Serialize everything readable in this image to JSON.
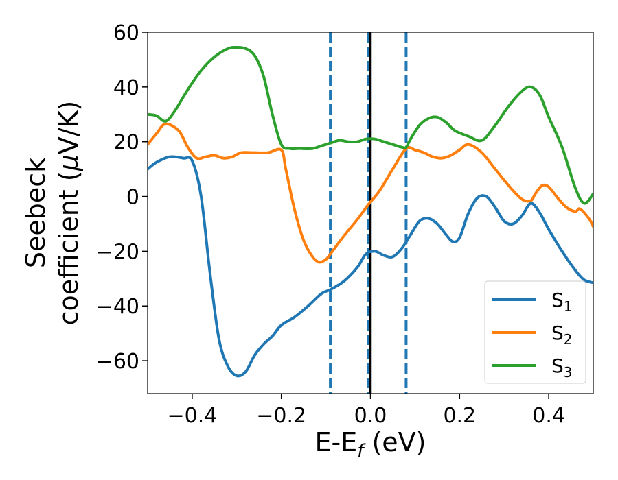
{
  "chart_data": {
    "type": "line",
    "xlabel": {
      "main": "E-E",
      "sub": "f",
      "unit": " (eV)"
    },
    "ylabel": {
      "line1": "Seebeck",
      "line2_prefix": "coefficient  (",
      "mu": "μ",
      "line2_suffix": "V/K)"
    },
    "xlim": [
      -0.5,
      0.5
    ],
    "ylim": [
      -72,
      60
    ],
    "xticks": [
      -0.4,
      -0.2,
      0.0,
      0.2,
      0.4
    ],
    "xtick_labels": [
      "−0.4",
      "−0.2",
      "0.0",
      "0.2",
      "0.4"
    ],
    "yticks": [
      -60,
      -40,
      -20,
      0,
      20,
      40,
      60
    ],
    "ytick_labels": [
      "−60",
      "−40",
      "−20",
      "0",
      "20",
      "40",
      "60"
    ],
    "grid": false,
    "legend_position": "bottom-right",
    "vlines": [
      {
        "x": -0.09,
        "style": "dashed",
        "color": "#1f77b4"
      },
      {
        "x": -0.005,
        "style": "dashed",
        "color": "#1f77b4"
      },
      {
        "x": 0.08,
        "style": "dashed",
        "color": "#1f77b4"
      },
      {
        "x": 0.0,
        "style": "solid",
        "color": "#000000"
      }
    ],
    "series": [
      {
        "name": "S",
        "sub": "1",
        "color": "#1f77b4",
        "points": [
          [
            -0.5,
            10
          ],
          [
            -0.48,
            12.5
          ],
          [
            -0.45,
            14.5
          ],
          [
            -0.42,
            14
          ],
          [
            -0.4,
            13
          ],
          [
            -0.38,
            0
          ],
          [
            -0.36,
            -28
          ],
          [
            -0.34,
            -52
          ],
          [
            -0.32,
            -62
          ],
          [
            -0.3,
            -65.5
          ],
          [
            -0.28,
            -64
          ],
          [
            -0.26,
            -58
          ],
          [
            -0.24,
            -54
          ],
          [
            -0.22,
            -51
          ],
          [
            -0.2,
            -47
          ],
          [
            -0.17,
            -44
          ],
          [
            -0.14,
            -40
          ],
          [
            -0.11,
            -35.5
          ],
          [
            -0.09,
            -34
          ],
          [
            -0.06,
            -31
          ],
          [
            -0.03,
            -26
          ],
          [
            -0.01,
            -21
          ],
          [
            0.01,
            -20
          ],
          [
            0.03,
            -21.5
          ],
          [
            0.05,
            -22
          ],
          [
            0.07,
            -19
          ],
          [
            0.09,
            -14
          ],
          [
            0.11,
            -9
          ],
          [
            0.13,
            -8
          ],
          [
            0.15,
            -10
          ],
          [
            0.17,
            -14
          ],
          [
            0.185,
            -16.5
          ],
          [
            0.2,
            -15
          ],
          [
            0.22,
            -6
          ],
          [
            0.24,
            -0.5
          ],
          [
            0.26,
            0
          ],
          [
            0.28,
            -4
          ],
          [
            0.3,
            -9
          ],
          [
            0.32,
            -10
          ],
          [
            0.34,
            -7
          ],
          [
            0.36,
            -2.5
          ],
          [
            0.38,
            -6
          ],
          [
            0.4,
            -12
          ],
          [
            0.43,
            -20
          ],
          [
            0.46,
            -27
          ],
          [
            0.48,
            -30.5
          ],
          [
            0.5,
            -31.5
          ]
        ]
      },
      {
        "name": "S",
        "sub": "2",
        "color": "#ff7f0e",
        "points": [
          [
            -0.5,
            19
          ],
          [
            -0.48,
            23
          ],
          [
            -0.46,
            26.5
          ],
          [
            -0.43,
            24
          ],
          [
            -0.41,
            18
          ],
          [
            -0.39,
            14
          ],
          [
            -0.37,
            14.5
          ],
          [
            -0.35,
            15
          ],
          [
            -0.33,
            14
          ],
          [
            -0.31,
            14.5
          ],
          [
            -0.29,
            16
          ],
          [
            -0.26,
            16
          ],
          [
            -0.23,
            16
          ],
          [
            -0.2,
            17
          ],
          [
            -0.19,
            10
          ],
          [
            -0.17,
            -5
          ],
          [
            -0.15,
            -16
          ],
          [
            -0.13,
            -22
          ],
          [
            -0.115,
            -24
          ],
          [
            -0.1,
            -23
          ],
          [
            -0.09,
            -21
          ],
          [
            -0.06,
            -14.5
          ],
          [
            -0.03,
            -8.5
          ],
          [
            -0.005,
            -3
          ],
          [
            0.02,
            2
          ],
          [
            0.05,
            10
          ],
          [
            0.08,
            17.5
          ],
          [
            0.1,
            17
          ],
          [
            0.12,
            16
          ],
          [
            0.14,
            14.5
          ],
          [
            0.16,
            14
          ],
          [
            0.18,
            15
          ],
          [
            0.2,
            17
          ],
          [
            0.22,
            19
          ],
          [
            0.25,
            16
          ],
          [
            0.28,
            10
          ],
          [
            0.31,
            4
          ],
          [
            0.34,
            -1
          ],
          [
            0.36,
            -1.5
          ],
          [
            0.37,
            1
          ],
          [
            0.385,
            4
          ],
          [
            0.4,
            3.5
          ],
          [
            0.42,
            -0.5
          ],
          [
            0.44,
            -4
          ],
          [
            0.46,
            -5.5
          ],
          [
            0.47,
            -4.5
          ],
          [
            0.49,
            -8
          ],
          [
            0.5,
            -11
          ]
        ]
      },
      {
        "name": "S",
        "sub": "3",
        "color": "#2ca02c",
        "points": [
          [
            -0.5,
            30
          ],
          [
            -0.48,
            29.5
          ],
          [
            -0.46,
            27.5
          ],
          [
            -0.44,
            31
          ],
          [
            -0.41,
            39
          ],
          [
            -0.38,
            46
          ],
          [
            -0.35,
            51
          ],
          [
            -0.32,
            54
          ],
          [
            -0.3,
            54.5
          ],
          [
            -0.28,
            54
          ],
          [
            -0.26,
            51.5
          ],
          [
            -0.24,
            44
          ],
          [
            -0.22,
            30
          ],
          [
            -0.2,
            19
          ],
          [
            -0.18,
            17.5
          ],
          [
            -0.16,
            17.5
          ],
          [
            -0.13,
            17.5
          ],
          [
            -0.11,
            18.5
          ],
          [
            -0.09,
            19.5
          ],
          [
            -0.07,
            20.5
          ],
          [
            -0.05,
            20
          ],
          [
            -0.03,
            20
          ],
          [
            -0.01,
            21
          ],
          [
            0.01,
            21
          ],
          [
            0.03,
            20
          ],
          [
            0.05,
            19
          ],
          [
            0.07,
            18
          ],
          [
            0.08,
            18
          ],
          [
            0.09,
            21
          ],
          [
            0.11,
            26
          ],
          [
            0.13,
            28.5
          ],
          [
            0.15,
            29
          ],
          [
            0.17,
            27
          ],
          [
            0.19,
            24
          ],
          [
            0.22,
            22
          ],
          [
            0.25,
            20.5
          ],
          [
            0.28,
            26
          ],
          [
            0.31,
            33
          ],
          [
            0.34,
            38.5
          ],
          [
            0.36,
            40
          ],
          [
            0.38,
            37
          ],
          [
            0.4,
            29
          ],
          [
            0.43,
            18
          ],
          [
            0.46,
            3
          ],
          [
            0.48,
            -2.5
          ],
          [
            0.5,
            1
          ]
        ]
      }
    ]
  }
}
